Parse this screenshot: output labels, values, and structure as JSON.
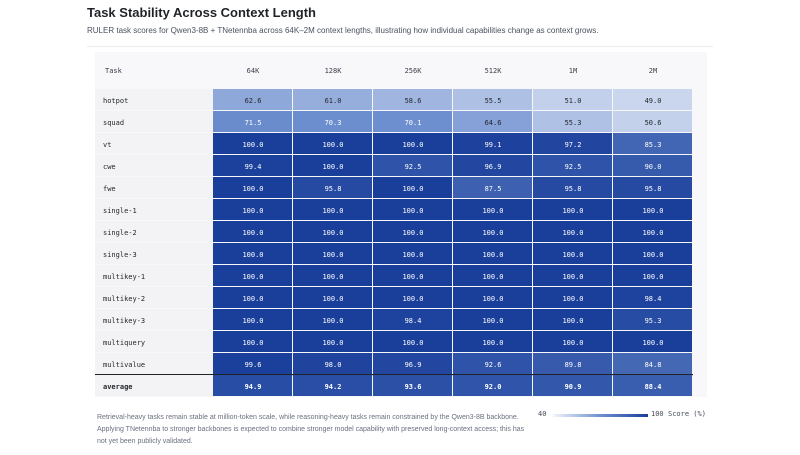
{
  "header": {
    "title": "Task Stability Across Context Length",
    "subtitle": "RULER task scores for Qwen3-8B + TNetennba across 64K–2M context lengths, illustrating how individual capabilities change as context grows."
  },
  "chart_data": {
    "type": "heatmap",
    "row_header": "Task",
    "columns": [
      "64K",
      "128K",
      "256K",
      "512K",
      "1M",
      "2M"
    ],
    "rows": [
      {
        "task": "hotpot",
        "values": [
          62.6,
          61.0,
          58.6,
          55.5,
          51.0,
          49.0
        ]
      },
      {
        "task": "squad",
        "values": [
          71.5,
          70.3,
          70.1,
          64.6,
          55.3,
          50.6
        ]
      },
      {
        "task": "vt",
        "values": [
          100.0,
          100.0,
          100.0,
          99.1,
          97.2,
          85.3
        ]
      },
      {
        "task": "cwe",
        "values": [
          99.4,
          100.0,
          92.5,
          96.9,
          92.5,
          90.0
        ]
      },
      {
        "task": "fwe",
        "values": [
          100.0,
          95.8,
          100.0,
          87.5,
          95.8,
          95.8
        ]
      },
      {
        "task": "single-1",
        "values": [
          100.0,
          100.0,
          100.0,
          100.0,
          100.0,
          100.0
        ]
      },
      {
        "task": "single-2",
        "values": [
          100.0,
          100.0,
          100.0,
          100.0,
          100.0,
          100.0
        ]
      },
      {
        "task": "single-3",
        "values": [
          100.0,
          100.0,
          100.0,
          100.0,
          100.0,
          100.0
        ]
      },
      {
        "task": "multikey-1",
        "values": [
          100.0,
          100.0,
          100.0,
          100.0,
          100.0,
          100.0
        ]
      },
      {
        "task": "multikey-2",
        "values": [
          100.0,
          100.0,
          100.0,
          100.0,
          100.0,
          98.4
        ]
      },
      {
        "task": "multikey-3",
        "values": [
          100.0,
          100.0,
          98.4,
          100.0,
          100.0,
          95.3
        ]
      },
      {
        "task": "multiquery",
        "values": [
          100.0,
          100.0,
          100.0,
          100.0,
          100.0,
          100.0
        ]
      },
      {
        "task": "multivalue",
        "values": [
          99.6,
          98.0,
          96.9,
          92.6,
          89.8,
          84.8
        ]
      },
      {
        "task": "average",
        "values": [
          94.9,
          94.2,
          93.6,
          92.0,
          90.9,
          88.4
        ]
      }
    ],
    "color_scale": {
      "min": 40,
      "max": 100,
      "colors": [
        "#f2f5fb",
        "#6e8fcf",
        "#1a3f9b"
      ],
      "label": "Score (%)"
    },
    "legend_position": "bottom-right"
  },
  "footer": {
    "note": "Retrieval-heavy tasks remain stable at million-token scale, while reasoning-heavy tasks remain constrained by the Qwen3-8B backbone. Applying TNetennba to stronger backbones is expected to combine stronger model capability with preserved long-context access; this has not yet been publicly validated.",
    "legend_min": "40",
    "legend_max": "100",
    "legend_unit": "Score (%)"
  }
}
